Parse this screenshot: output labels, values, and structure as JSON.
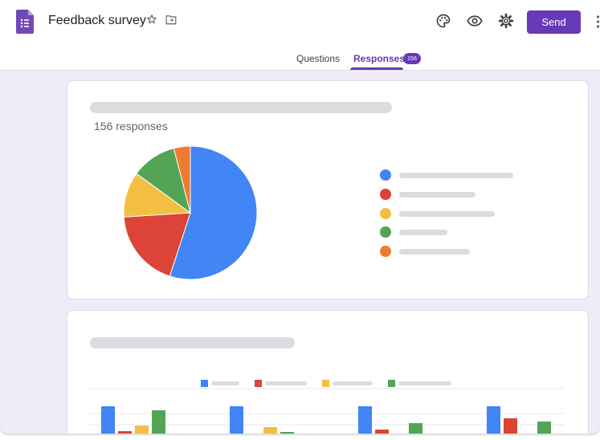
{
  "header": {
    "title": "Feedback survey",
    "send_label": "Send",
    "icons": [
      "forms-logo-icon",
      "star-icon",
      "move-to-folder-icon",
      "palette-icon",
      "eye-icon",
      "gear-icon",
      "more-vert-icon"
    ]
  },
  "tabs": {
    "questions": "Questions",
    "responses": "Responses",
    "responses_badge": "156"
  },
  "summary": {
    "responses_text": "156 responses"
  },
  "colors": {
    "accent": "#673ab7",
    "background": "#f0ebf8",
    "skeleton": "#dadce0",
    "blue": "#4285f4",
    "red": "#db4437",
    "yellow": "#f4b400",
    "green": "#0f9d58",
    "orange": "#f07935"
  },
  "chart_data": [
    {
      "type": "pie",
      "values": [
        55,
        19,
        11,
        11,
        4
      ],
      "series_colors": [
        "#4285f4",
        "#db4437",
        "#f2bf42",
        "#53a455",
        "#ef7b33"
      ]
    },
    {
      "type": "bar",
      "categories": [
        "",
        "",
        "",
        ""
      ],
      "series": [
        {
          "color": "#4285f4",
          "values": [
            43,
            43,
            43,
            43
          ]
        },
        {
          "color": "#db4437",
          "values": [
            12,
            3,
            14,
            28
          ]
        },
        {
          "color": "#f2bf42",
          "values": [
            19,
            17,
            1,
            5
          ]
        },
        {
          "color": "#53a455",
          "values": [
            38,
            11,
            22,
            24
          ]
        }
      ]
    }
  ]
}
